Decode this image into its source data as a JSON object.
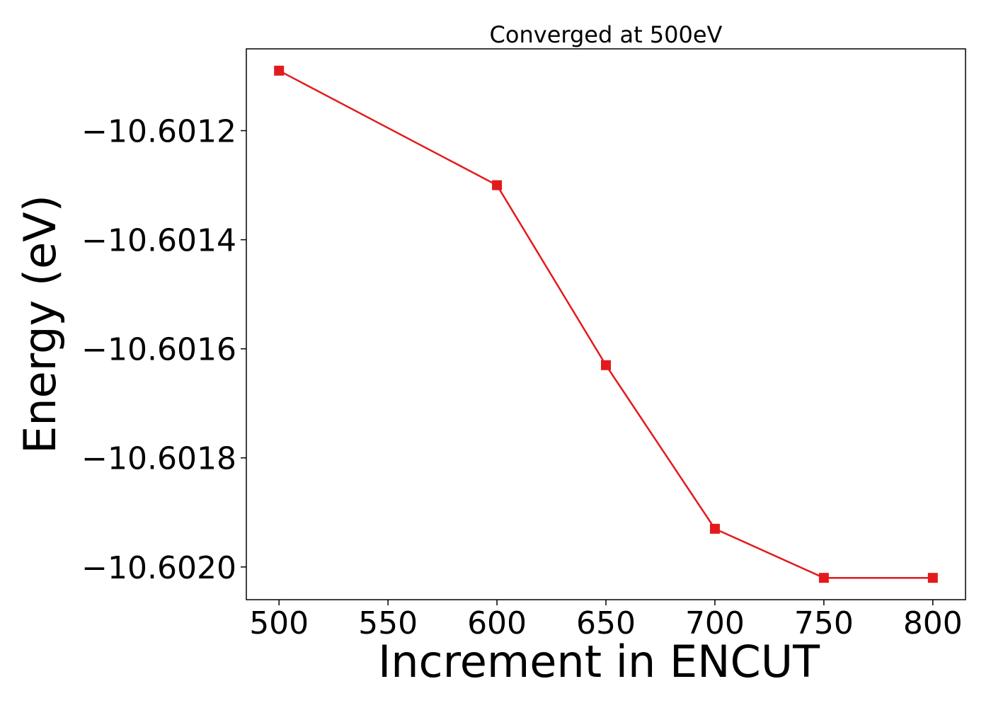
{
  "chart_data": {
    "type": "line",
    "title": "Converged at 500eV",
    "xlabel": "Increment in ENCUT",
    "ylabel": "Energy (eV)",
    "x": [
      500,
      600,
      650,
      700,
      750,
      800
    ],
    "series": [
      {
        "values": [
          -10.60109,
          -10.6013,
          -10.60163,
          -10.60193,
          -10.60202,
          -10.60202
        ],
        "color": "#e31a1c",
        "marker": "square"
      }
    ],
    "xticks": [
      500,
      550,
      600,
      650,
      700,
      750,
      800
    ],
    "xtick_labels": [
      "500",
      "550",
      "600",
      "650",
      "700",
      "750",
      "800"
    ],
    "yticks": [
      -10.6012,
      -10.6014,
      -10.6016,
      -10.6018,
      -10.602
    ],
    "ytick_labels": [
      "−10.6012",
      "−10.6014",
      "−10.6016",
      "−10.6018",
      "−10.6020"
    ],
    "xlim": [
      485,
      815
    ],
    "ylim": [
      -10.60206,
      -10.60105
    ],
    "grid": false,
    "legend": "none"
  }
}
